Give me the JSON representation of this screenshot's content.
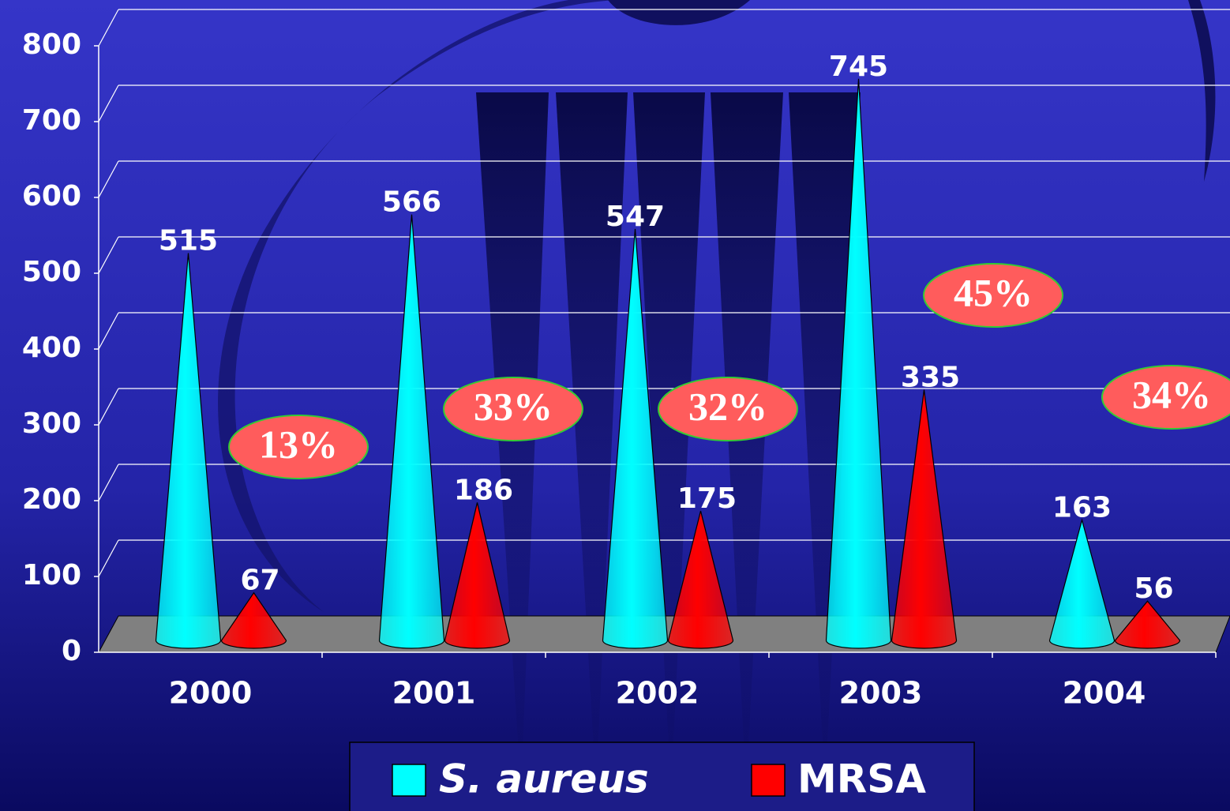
{
  "chart_data": {
    "type": "cone_bar",
    "categories": [
      "2000",
      "2001",
      "2002",
      "2003",
      "2004"
    ],
    "series": [
      {
        "name": "S. aureus",
        "color": "#00ffff",
        "values": [
          515,
          566,
          547,
          745,
          163
        ]
      },
      {
        "name": "MRSA",
        "color": "#ff0000",
        "values": [
          67,
          186,
          175,
          335,
          56
        ]
      }
    ],
    "ylim": [
      0,
      800
    ],
    "yticks": [
      0,
      100,
      200,
      300,
      400,
      500,
      600,
      700,
      800
    ],
    "grid": true,
    "annotations": [
      "13%",
      "33%",
      "32%",
      "45%",
      "34%"
    ],
    "legend": "bottom"
  }
}
